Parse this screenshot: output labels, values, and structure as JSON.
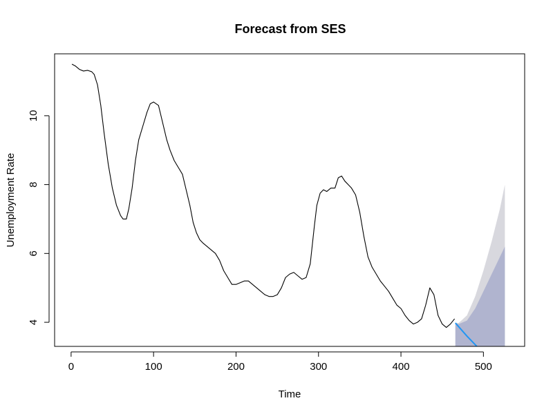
{
  "chart_data": {
    "type": "line",
    "title": "Forecast from SES",
    "xlabel": "Time",
    "ylabel": "Unemployment Rate",
    "xlim": [
      -20,
      550
    ],
    "ylim": [
      3.3,
      11.8
    ],
    "xticks": [
      0,
      100,
      200,
      300,
      400,
      500
    ],
    "yticks": [
      4,
      6,
      8,
      10
    ],
    "grid": false,
    "colors": {
      "history": "#000000",
      "forecast": "#2196f3",
      "band80": "#b0b4cf",
      "band95": "#d8d8de",
      "plot_bg": "#ffffff",
      "frame": "#000000"
    },
    "series": [
      {
        "kind": "history",
        "x": [
          1,
          5,
          10,
          15,
          20,
          25,
          28,
          32,
          36,
          40,
          45,
          50,
          55,
          60,
          63,
          67,
          70,
          74,
          78,
          82,
          87,
          92,
          96,
          100,
          103,
          106,
          109,
          112,
          116,
          120,
          125,
          130,
          135,
          140,
          144,
          148,
          152,
          156,
          160,
          165,
          170,
          175,
          180,
          185,
          190,
          195,
          200,
          205,
          210,
          215,
          220,
          225,
          230,
          235,
          240,
          245,
          250,
          255,
          260,
          265,
          270,
          275,
          280,
          285,
          290,
          295,
          298,
          302,
          306,
          310,
          315,
          320,
          324,
          328,
          332,
          336,
          340,
          345,
          350,
          355,
          360,
          365,
          370,
          375,
          380,
          385,
          390,
          395,
          400,
          405,
          410,
          415,
          420,
          425,
          430,
          435,
          440,
          445,
          450,
          455,
          460,
          465
        ],
        "y": [
          11.5,
          11.45,
          11.35,
          11.3,
          11.32,
          11.28,
          11.2,
          10.9,
          10.3,
          9.5,
          8.6,
          7.9,
          7.4,
          7.1,
          7.0,
          7.0,
          7.3,
          7.9,
          8.7,
          9.3,
          9.7,
          10.1,
          10.35,
          10.4,
          10.35,
          10.3,
          10.0,
          9.7,
          9.3,
          9.0,
          8.7,
          8.5,
          8.3,
          7.8,
          7.4,
          6.9,
          6.6,
          6.4,
          6.3,
          6.2,
          6.1,
          6.0,
          5.8,
          5.5,
          5.3,
          5.1,
          5.1,
          5.15,
          5.2,
          5.2,
          5.1,
          5.0,
          4.9,
          4.8,
          4.75,
          4.75,
          4.8,
          5.0,
          5.3,
          5.4,
          5.45,
          5.35,
          5.25,
          5.3,
          5.7,
          6.8,
          7.4,
          7.75,
          7.85,
          7.8,
          7.9,
          7.9,
          8.2,
          8.25,
          8.1,
          8.0,
          7.9,
          7.7,
          7.2,
          6.5,
          5.9,
          5.6,
          5.4,
          5.2,
          5.05,
          4.9,
          4.7,
          4.5,
          4.4,
          4.2,
          4.05,
          3.95,
          4.0,
          4.1,
          4.5,
          5.0,
          4.8,
          4.2,
          3.95,
          3.85,
          3.95,
          4.1
        ]
      },
      {
        "kind": "forecast",
        "x": [
          466,
          480,
          500,
          526
        ],
        "y": [
          3.98,
          3.6,
          3.1,
          2.6
        ]
      }
    ],
    "bands": [
      {
        "level": "95",
        "x": [
          466,
          470,
          480,
          490,
          500,
          510,
          520,
          526
        ],
        "lower": [
          3.3,
          3.3,
          3.3,
          3.3,
          3.3,
          3.3,
          3.3,
          3.3
        ],
        "upper": [
          3.98,
          3.98,
          4.2,
          4.75,
          5.5,
          6.35,
          7.3,
          8.0
        ]
      },
      {
        "level": "80",
        "x": [
          466,
          470,
          480,
          490,
          500,
          510,
          520,
          526
        ],
        "lower": [
          3.3,
          3.3,
          3.3,
          3.3,
          3.3,
          3.3,
          3.3,
          3.3
        ],
        "upper": [
          3.98,
          3.95,
          4.05,
          4.4,
          4.9,
          5.4,
          5.9,
          6.2
        ]
      }
    ]
  }
}
